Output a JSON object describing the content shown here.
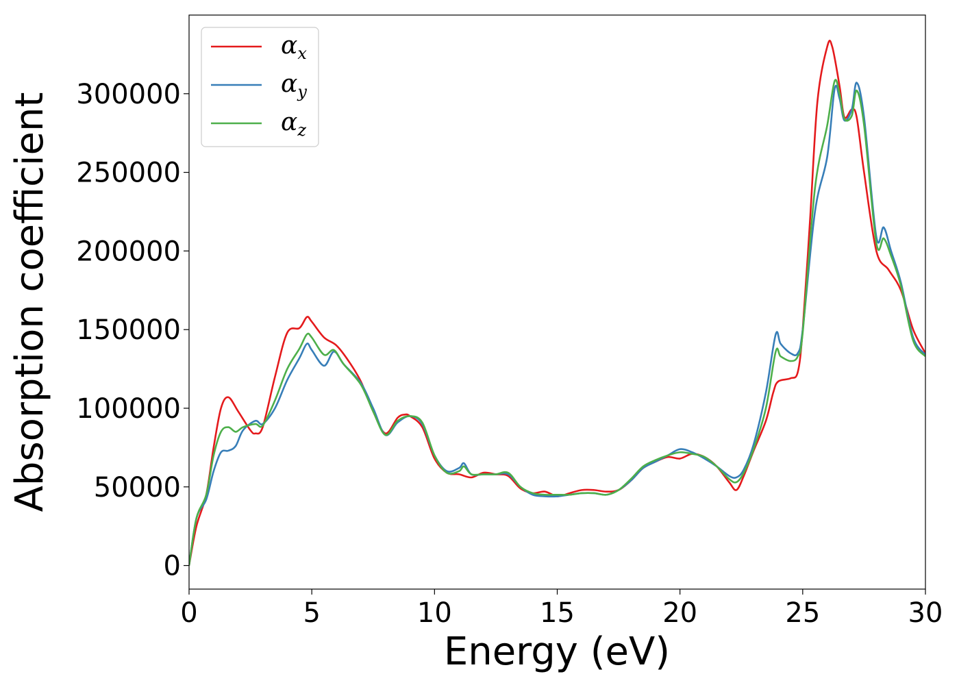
{
  "chart_data": {
    "type": "line",
    "xlabel": "Energy (eV)",
    "ylabel": "Absorption coefficient",
    "xlim": [
      0,
      30
    ],
    "ylim": [
      -15000,
      350000
    ],
    "xticks": [
      0,
      5,
      10,
      15,
      20,
      25,
      30
    ],
    "xtick_labels": [
      "0",
      "5",
      "10",
      "15",
      "20",
      "25",
      "30"
    ],
    "yticks": [
      0,
      50000,
      100000,
      150000,
      200000,
      250000,
      300000
    ],
    "ytick_labels": [
      "0",
      "50000",
      "100000",
      "150000",
      "200000",
      "250000",
      "300000"
    ],
    "grid": false,
    "legend_position": "upper-left",
    "series": [
      {
        "name": "α",
        "subscript": "x",
        "color": "#e41a1c",
        "x": [
          0,
          0.3,
          0.7,
          1.0,
          1.3,
          1.6,
          2.0,
          2.5,
          2.7,
          3.0,
          3.5,
          4.0,
          4.5,
          4.8,
          5.0,
          5.5,
          6.0,
          6.5,
          7.0,
          7.5,
          8.0,
          8.5,
          8.8,
          9.0,
          9.5,
          10.0,
          10.5,
          11.0,
          11.5,
          12.0,
          12.5,
          13.0,
          13.5,
          14.0,
          14.5,
          15.0,
          15.5,
          16.0,
          16.5,
          17.0,
          17.5,
          18.0,
          18.5,
          19.0,
          19.5,
          20.0,
          20.5,
          21.0,
          21.5,
          22.0,
          22.3,
          22.6,
          23.0,
          23.5,
          23.8,
          24.0,
          24.5,
          24.8,
          25.0,
          25.3,
          25.6,
          26.0,
          26.2,
          26.5,
          26.7,
          27.0,
          27.2,
          27.5,
          28.0,
          28.5,
          29.0,
          29.5,
          30.0
        ],
        "y": [
          0,
          25000,
          45000,
          75000,
          100000,
          107000,
          98000,
          86000,
          84000,
          88000,
          120000,
          148000,
          151000,
          158000,
          155000,
          145000,
          140000,
          130000,
          117000,
          98000,
          84000,
          94000,
          96000,
          95000,
          88000,
          68000,
          59000,
          58000,
          56000,
          59000,
          58000,
          57000,
          49000,
          46000,
          47000,
          44000,
          46000,
          48000,
          48000,
          47000,
          48000,
          54000,
          62000,
          66000,
          69000,
          68000,
          71000,
          69000,
          63000,
          53000,
          48000,
          57000,
          73000,
          92000,
          110000,
          117000,
          119000,
          123000,
          150000,
          220000,
          295000,
          330000,
          330000,
          305000,
          285000,
          290000,
          285000,
          250000,
          200000,
          188000,
          175000,
          150000,
          135000
        ]
      },
      {
        "name": "α",
        "subscript": "y",
        "color": "#377eb8",
        "x": [
          0,
          0.3,
          0.7,
          1.0,
          1.3,
          1.6,
          1.9,
          2.2,
          2.7,
          3.0,
          3.5,
          4.0,
          4.5,
          4.8,
          5.0,
          5.5,
          5.9,
          6.3,
          7.0,
          7.5,
          8.0,
          8.5,
          9.0,
          9.5,
          10.0,
          10.5,
          11.0,
          11.2,
          11.5,
          12.0,
          12.5,
          13.0,
          13.5,
          14.0,
          14.5,
          15.0,
          15.5,
          16.0,
          16.5,
          17.0,
          17.5,
          18.0,
          18.5,
          19.0,
          19.5,
          20.0,
          20.5,
          21.0,
          21.5,
          22.0,
          22.3,
          22.6,
          23.0,
          23.5,
          23.9,
          24.1,
          24.5,
          24.8,
          25.0,
          25.5,
          26.0,
          26.3,
          26.5,
          26.7,
          27.0,
          27.2,
          27.5,
          28.0,
          28.3,
          28.6,
          29.0,
          29.5,
          30.0
        ],
        "y": [
          0,
          30000,
          42000,
          60000,
          72000,
          73000,
          76000,
          86000,
          92000,
          90000,
          100000,
          118000,
          132000,
          141000,
          137000,
          127000,
          136000,
          128000,
          116000,
          100000,
          83000,
          91000,
          95000,
          90000,
          70000,
          60000,
          62000,
          65000,
          58000,
          58000,
          58000,
          58000,
          50000,
          45000,
          44000,
          44000,
          45000,
          46000,
          46000,
          45000,
          48000,
          54000,
          62000,
          66000,
          70000,
          74000,
          72000,
          68000,
          63000,
          57000,
          56000,
          61000,
          77000,
          110000,
          147000,
          141000,
          135000,
          135000,
          150000,
          225000,
          260000,
          303000,
          297000,
          283000,
          290000,
          307000,
          285000,
          209000,
          215000,
          200000,
          180000,
          145000,
          134000
        ]
      },
      {
        "name": "α",
        "subscript": "z",
        "color": "#4daf4a",
        "x": [
          0,
          0.3,
          0.7,
          1.0,
          1.3,
          1.6,
          1.9,
          2.2,
          2.7,
          3.0,
          3.5,
          4.0,
          4.5,
          4.8,
          5.0,
          5.5,
          5.9,
          6.3,
          7.0,
          7.5,
          8.0,
          8.5,
          9.0,
          9.5,
          10.0,
          10.5,
          11.0,
          11.2,
          11.5,
          12.0,
          12.5,
          13.0,
          13.5,
          14.0,
          14.5,
          15.0,
          15.5,
          16.0,
          16.5,
          17.0,
          17.5,
          18.0,
          18.5,
          19.0,
          19.5,
          20.0,
          20.5,
          21.0,
          21.5,
          22.0,
          22.3,
          22.6,
          23.0,
          23.5,
          23.9,
          24.1,
          24.5,
          24.8,
          25.0,
          25.5,
          26.0,
          26.3,
          26.5,
          26.7,
          27.0,
          27.2,
          27.5,
          28.0,
          28.3,
          28.6,
          29.0,
          29.5,
          30.0
        ],
        "y": [
          0,
          30000,
          45000,
          70000,
          85000,
          88000,
          85000,
          88000,
          90000,
          89000,
          105000,
          125000,
          138000,
          147000,
          145000,
          134000,
          137000,
          128000,
          115000,
          98000,
          83000,
          92000,
          95000,
          91000,
          70000,
          59000,
          60000,
          63000,
          58000,
          58000,
          58000,
          59000,
          50000,
          46000,
          45000,
          45000,
          45000,
          46000,
          46000,
          45000,
          48000,
          55000,
          63000,
          67000,
          70000,
          72000,
          71000,
          69000,
          63000,
          55000,
          53000,
          59000,
          74000,
          100000,
          136000,
          133000,
          130000,
          133000,
          148000,
          240000,
          280000,
          308000,
          300000,
          284000,
          286000,
          302000,
          280000,
          205000,
          208000,
          197000,
          178000,
          143000,
          133000
        ]
      }
    ]
  }
}
